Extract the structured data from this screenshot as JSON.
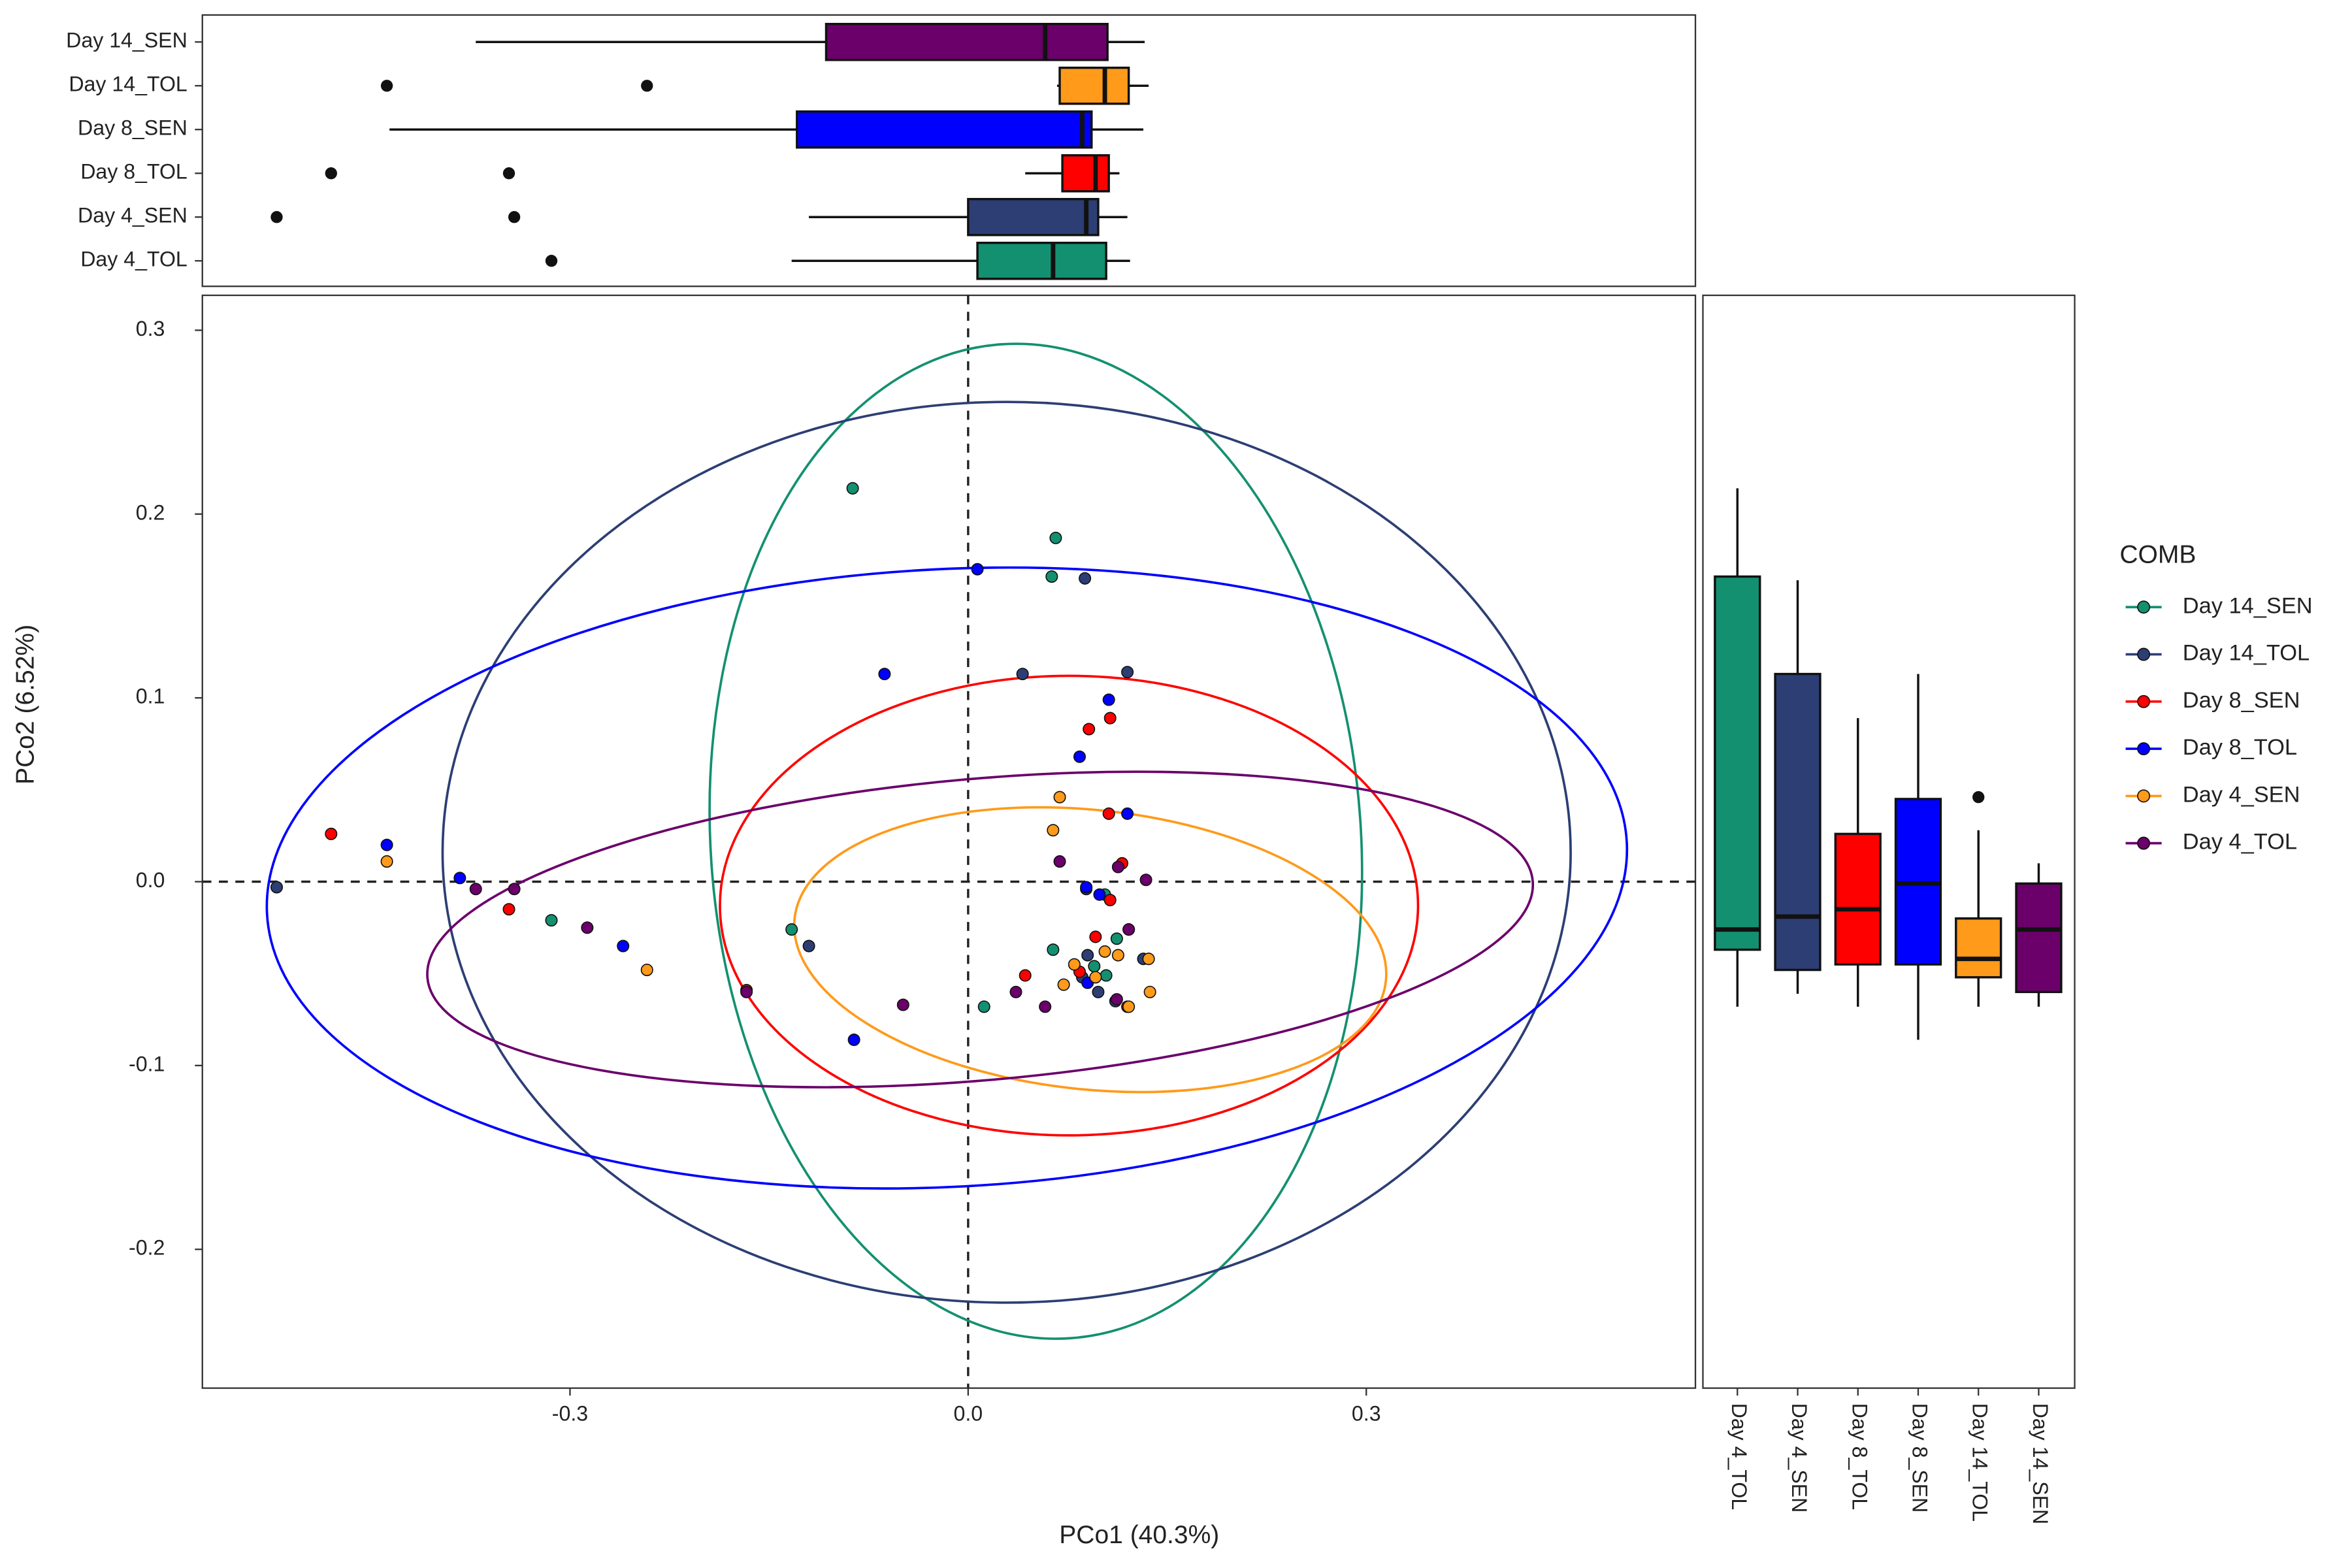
{
  "chart_data": [
    {
      "type": "scatter",
      "xlabel": "PCo1 (40.3%)",
      "ylabel": "PCo2 (6.52%)",
      "legend_title": "COMB",
      "xlim": [
        -0.577,
        0.548
      ],
      "ylim": [
        -0.2755,
        0.319
      ],
      "xticks": [
        -0.3,
        {
          "value": 0,
          "label": "0.0"
        },
        0.3
      ],
      "yticks": [
        -0.2,
        -0.1,
        {
          "value": 0,
          "label": "0.0"
        },
        0.1,
        0.2,
        0.3
      ],
      "vline": 0,
      "hline": 0,
      "series": [
        {
          "name": "Day 14_SEN",
          "color": "#13906f",
          "x": [
            -0.087,
            0.066,
            0.063,
            -0.314,
            -0.133,
            0.012,
            0.064,
            0.104,
            0.112,
            0.103,
            0.095
          ],
          "y": [
            0.214,
            0.187,
            0.166,
            -0.021,
            -0.026,
            -0.068,
            -0.037,
            -0.051,
            -0.031,
            -0.007,
            -0.046
          ],
          "ellipse": {
            "cx": 0.051,
            "cy": 0.022,
            "rx": 0.245,
            "ry": 0.271,
            "angle": -4
          }
        },
        {
          "name": "Day 14_TOL",
          "color": "#2c3e74",
          "x": [
            -0.521,
            -0.12,
            0.041,
            0.088,
            0.12,
            0.089,
            0.09,
            0.098,
            0.121,
            0.132,
            0.111,
            0.086
          ],
          "y": [
            -0.003,
            -0.035,
            0.113,
            0.165,
            0.114,
            -0.004,
            -0.04,
            -0.06,
            -0.026,
            -0.042,
            -0.065,
            -0.052
          ],
          "ellipse": {
            "cx": 0.029,
            "cy": 0.016,
            "rx": 0.425,
            "ry": 0.245,
            "angle": 0
          }
        },
        {
          "name": "Day 8_SEN",
          "color": "#ff0000",
          "x": [
            -0.48,
            -0.346,
            -0.167,
            0.043,
            0.091,
            0.107,
            0.106,
            0.116,
            0.096,
            0.084,
            0.12,
            0.107
          ],
          "y": [
            0.026,
            -0.015,
            -0.059,
            -0.051,
            0.083,
            0.089,
            0.037,
            0.01,
            -0.03,
            -0.049,
            -0.068,
            -0.01
          ],
          "ellipse": {
            "cx": 0.076,
            "cy": -0.013,
            "rx": 0.263,
            "ry": 0.125,
            "angle": 0
          }
        },
        {
          "name": "Day 8_TOL",
          "color": "#0000ff",
          "x": [
            -0.438,
            -0.383,
            -0.26,
            -0.086,
            -0.063,
            0.007,
            0.084,
            0.106,
            0.12,
            0.089,
            0.09,
            0.099
          ],
          "y": [
            0.02,
            0.002,
            -0.035,
            -0.086,
            0.113,
            0.17,
            0.068,
            0.099,
            0.037,
            -0.003,
            -0.055,
            -0.007
          ],
          "ellipse": {
            "cx": -0.016,
            "cy": 0.002,
            "rx": 0.513,
            "ry": 0.168,
            "angle": -3
          }
        },
        {
          "name": "Day 4_SEN",
          "color": "#ff9a1a",
          "x": [
            -0.438,
            -0.242,
            0.069,
            0.064,
            0.072,
            0.103,
            0.113,
            0.137,
            0.121,
            0.136,
            0.08,
            0.096
          ],
          "y": [
            0.011,
            -0.048,
            0.046,
            0.028,
            -0.056,
            -0.038,
            -0.04,
            -0.06,
            -0.068,
            -0.042,
            -0.045,
            -0.052
          ],
          "ellipse": {
            "cx": 0.092,
            "cy": -0.037,
            "rx": 0.224,
            "ry": 0.076,
            "angle": 6
          }
        },
        {
          "name": "Day 4_TOL",
          "color": "#6b006b",
          "x": [
            -0.371,
            -0.342,
            -0.287,
            -0.167,
            -0.049,
            0.036,
            0.058,
            0.069,
            0.113,
            0.134,
            0.121,
            0.112
          ],
          "y": [
            -0.004,
            -0.004,
            -0.025,
            -0.06,
            -0.067,
            -0.06,
            -0.068,
            0.011,
            0.008,
            0.001,
            -0.026,
            -0.064
          ],
          "ellipse": {
            "cx": 0.009,
            "cy": -0.026,
            "rx": 0.418,
            "ry": 0.082,
            "angle": -5
          }
        }
      ]
    },
    {
      "type": "boxplot",
      "orientation": "horizontal",
      "xlim": [
        -0.577,
        0.548
      ],
      "categories": [
        "Day 14_SEN",
        "Day 14_TOL",
        "Day 8_SEN",
        "Day 8_TOL",
        "Day 4_SEN",
        "Day 4_TOL"
      ],
      "colors": [
        "#6b006b",
        "#ff9a1a",
        "#0000ff",
        "#ff0000",
        "#2c3e74",
        "#13906f"
      ],
      "boxes": [
        {
          "min": -0.371,
          "q1": -0.107,
          "median": 0.058,
          "q3": 0.105,
          "max": 0.133,
          "outliers": []
        },
        {
          "min": 0.067,
          "q1": 0.069,
          "median": 0.103,
          "q3": 0.121,
          "max": 0.136,
          "outliers": [
            -0.438,
            -0.242
          ]
        },
        {
          "min": -0.436,
          "q1": -0.129,
          "median": 0.086,
          "q3": 0.093,
          "max": 0.132,
          "outliers": []
        },
        {
          "min": 0.043,
          "q1": 0.071,
          "median": 0.096,
          "q3": 0.106,
          "max": 0.114,
          "outliers": [
            -0.48,
            -0.346
          ]
        },
        {
          "min": -0.12,
          "q1": 0.0,
          "median": 0.089,
          "q3": 0.098,
          "max": 0.12,
          "outliers": [
            -0.521,
            -0.342
          ]
        },
        {
          "min": -0.133,
          "q1": 0.007,
          "median": 0.064,
          "q3": 0.104,
          "max": 0.122,
          "outliers": [
            -0.314
          ]
        }
      ]
    },
    {
      "type": "boxplot",
      "orientation": "vertical",
      "ylim": [
        -0.2755,
        0.319
      ],
      "categories": [
        "Day 4_TOL",
        "Day 4_SEN",
        "Day 8_TOL",
        "Day 8_SEN",
        "Day 14_TOL",
        "Day 14_SEN"
      ],
      "colors": [
        "#13906f",
        "#2c3e74",
        "#ff0000",
        "#0000ff",
        "#ff9a1a",
        "#6b006b"
      ],
      "boxes": [
        {
          "min": -0.068,
          "q1": -0.037,
          "median": -0.026,
          "q3": 0.166,
          "max": 0.214,
          "outliers": []
        },
        {
          "min": -0.061,
          "q1": -0.048,
          "median": -0.019,
          "q3": 0.113,
          "max": 0.164,
          "outliers": []
        },
        {
          "min": -0.068,
          "q1": -0.045,
          "median": -0.015,
          "q3": 0.026,
          "max": 0.089,
          "outliers": []
        },
        {
          "min": -0.086,
          "q1": -0.045,
          "median": -0.001,
          "q3": 0.045,
          "max": 0.113,
          "outliers": []
        },
        {
          "min": -0.068,
          "q1": -0.052,
          "median": -0.042,
          "q3": -0.02,
          "max": 0.028,
          "outliers": [
            0.046
          ]
        },
        {
          "min": -0.068,
          "q1": -0.06,
          "median": -0.026,
          "q3": -0.001,
          "max": 0.01,
          "outliers": []
        }
      ]
    }
  ]
}
